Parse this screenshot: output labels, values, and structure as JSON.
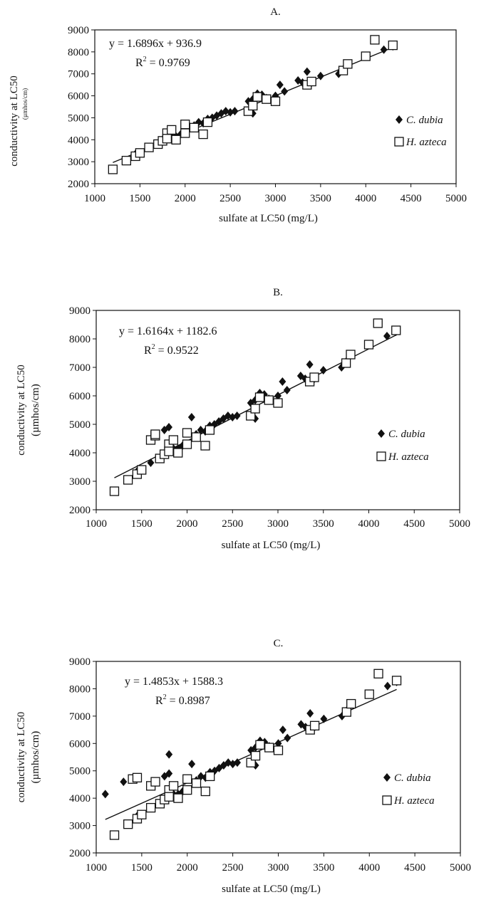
{
  "chart_data": [
    {
      "type": "scatter",
      "title": "A.",
      "xlabel": "sulfate at LC50 (mg/L)",
      "ylabel": "conductivity at LC50",
      "ylabel_unit": "(µmhos/cm)",
      "xlim": [
        1000,
        5000
      ],
      "ylim": [
        2000,
        9000
      ],
      "x_ticks": [
        1000,
        1500,
        2000,
        2500,
        3000,
        3500,
        4000,
        4500,
        5000
      ],
      "y_ticks": [
        2000,
        3000,
        4000,
        5000,
        6000,
        7000,
        8000,
        9000
      ],
      "equation": "y = 1.6896x + 936.9",
      "r2_label": "R",
      "r2_exp": "2",
      "r2_value": " = 0.9769",
      "trendline": {
        "slope": 1.6896,
        "intercept": 936.9,
        "x_range": [
          1200,
          4300
        ]
      },
      "legend_position": "right",
      "series": [
        {
          "name": "C. dubia",
          "marker": "diamond",
          "points": [
            [
              1450,
              3350
            ],
            [
              1500,
              3400
            ],
            [
              1600,
              3650
            ],
            [
              1750,
              3950
            ],
            [
              1800,
              4100
            ],
            [
              1850,
              4150
            ],
            [
              1900,
              4150
            ],
            [
              1950,
              4250
            ],
            [
              2000,
              4400
            ],
            [
              2050,
              4600
            ],
            [
              2100,
              4650
            ],
            [
              2150,
              4800
            ],
            [
              2200,
              4750
            ],
            [
              2250,
              4950
            ],
            [
              2300,
              5000
            ],
            [
              2350,
              5100
            ],
            [
              2400,
              5200
            ],
            [
              2450,
              5300
            ],
            [
              2500,
              5250
            ],
            [
              2550,
              5300
            ],
            [
              2700,
              5750
            ],
            [
              2750,
              5850
            ],
            [
              2750,
              5200
            ],
            [
              2800,
              6100
            ],
            [
              2850,
              6050
            ],
            [
              2900,
              5900
            ],
            [
              3000,
              6000
            ],
            [
              3050,
              6500
            ],
            [
              3100,
              6200
            ],
            [
              3250,
              6700
            ],
            [
              3300,
              6600
            ],
            [
              3350,
              7100
            ],
            [
              3400,
              6600
            ],
            [
              3500,
              6900
            ],
            [
              3700,
              7000
            ],
            [
              3750,
              7200
            ],
            [
              4200,
              8100
            ],
            [
              4300,
              8250
            ]
          ]
        },
        {
          "name": "H. azteca",
          "marker": "square",
          "points": [
            [
              1200,
              2650
            ],
            [
              1350,
              3050
            ],
            [
              1450,
              3250
            ],
            [
              1500,
              3400
            ],
            [
              1600,
              3650
            ],
            [
              1700,
              3800
            ],
            [
              1750,
              3950
            ],
            [
              1800,
              4300
            ],
            [
              1800,
              4050
            ],
            [
              1850,
              4450
            ],
            [
              1900,
              4000
            ],
            [
              2000,
              4700
            ],
            [
              2000,
              4300
            ],
            [
              2100,
              4550
            ],
            [
              2200,
              4250
            ],
            [
              2250,
              4800
            ],
            [
              2700,
              5300
            ],
            [
              2750,
              5550
            ],
            [
              2800,
              5950
            ],
            [
              2900,
              5850
            ],
            [
              3000,
              5750
            ],
            [
              3350,
              6500
            ],
            [
              3400,
              6650
            ],
            [
              3750,
              7150
            ],
            [
              3800,
              7450
            ],
            [
              4000,
              7800
            ],
            [
              4100,
              8550
            ],
            [
              4300,
              8300
            ]
          ]
        }
      ]
    },
    {
      "type": "scatter",
      "title": "B.",
      "xlabel": "sulfate at LC50 (mg/L)",
      "ylabel": "conductivity at LC50",
      "ylabel_unit": "(µmhos/cm)",
      "xlim": [
        1000,
        5000
      ],
      "ylim": [
        2000,
        9000
      ],
      "x_ticks": [
        1000,
        1500,
        2000,
        2500,
        3000,
        3500,
        4000,
        4500,
        5000
      ],
      "y_ticks": [
        2000,
        3000,
        4000,
        5000,
        6000,
        7000,
        8000,
        9000
      ],
      "equation": "y = 1.6164x + 1182.6",
      "r2_label": "R",
      "r2_exp": "2",
      "r2_value": " = 0.9522",
      "trendline": {
        "slope": 1.6164,
        "intercept": 1182.6,
        "x_range": [
          1200,
          4300
        ]
      },
      "legend_position": "right",
      "series": [
        {
          "name": "C. dubia",
          "marker": "diamond",
          "points": [
            [
              1450,
              3350
            ],
            [
              1500,
              3400
            ],
            [
              1600,
              3650
            ],
            [
              1750,
              3950
            ],
            [
              1750,
              4800
            ],
            [
              1800,
              4900
            ],
            [
              1850,
              4150
            ],
            [
              1900,
              4150
            ],
            [
              1950,
              4250
            ],
            [
              2050,
              5250
            ],
            [
              2100,
              4650
            ],
            [
              2150,
              4800
            ],
            [
              2200,
              4750
            ],
            [
              2250,
              4950
            ],
            [
              2300,
              5000
            ],
            [
              2350,
              5100
            ],
            [
              2400,
              5200
            ],
            [
              2450,
              5300
            ],
            [
              2500,
              5250
            ],
            [
              2550,
              5300
            ],
            [
              2700,
              5750
            ],
            [
              2750,
              5850
            ],
            [
              2750,
              5200
            ],
            [
              2800,
              6100
            ],
            [
              2850,
              6050
            ],
            [
              2900,
              5900
            ],
            [
              3000,
              6000
            ],
            [
              3050,
              6500
            ],
            [
              3100,
              6200
            ],
            [
              3250,
              6700
            ],
            [
              3300,
              6600
            ],
            [
              3350,
              7100
            ],
            [
              3400,
              6600
            ],
            [
              3500,
              6900
            ],
            [
              3700,
              7000
            ],
            [
              3750,
              7200
            ],
            [
              4200,
              8100
            ],
            [
              4300,
              8250
            ]
          ]
        },
        {
          "name": "H. azteca",
          "marker": "square",
          "points": [
            [
              1200,
              2650
            ],
            [
              1350,
              3050
            ],
            [
              1450,
              3250
            ],
            [
              1500,
              3400
            ],
            [
              1600,
              4450
            ],
            [
              1650,
              4600
            ],
            [
              1650,
              4650
            ],
            [
              1700,
              3800
            ],
            [
              1750,
              3950
            ],
            [
              1800,
              4300
            ],
            [
              1800,
              4050
            ],
            [
              1850,
              4450
            ],
            [
              1900,
              4000
            ],
            [
              2000,
              4700
            ],
            [
              2000,
              4300
            ],
            [
              2100,
              4550
            ],
            [
              2200,
              4250
            ],
            [
              2250,
              4800
            ],
            [
              2700,
              5300
            ],
            [
              2750,
              5550
            ],
            [
              2800,
              5950
            ],
            [
              2900,
              5850
            ],
            [
              3000,
              5750
            ],
            [
              3350,
              6500
            ],
            [
              3400,
              6650
            ],
            [
              3750,
              7150
            ],
            [
              3800,
              7450
            ],
            [
              4000,
              7800
            ],
            [
              4100,
              8550
            ],
            [
              4300,
              8300
            ]
          ]
        }
      ]
    },
    {
      "type": "scatter",
      "title": "C.",
      "xlabel": "sulfate at LC50 (mg/L)",
      "ylabel": "conductivity at LC50",
      "ylabel_unit": "(µmhos/cm)",
      "xlim": [
        1000,
        5000
      ],
      "ylim": [
        2000,
        9000
      ],
      "x_ticks": [
        1000,
        1500,
        2000,
        2500,
        3000,
        3500,
        4000,
        4500,
        5000
      ],
      "y_ticks": [
        2000,
        3000,
        4000,
        5000,
        6000,
        7000,
        8000,
        9000
      ],
      "equation": "y = 1.4853x + 1588.3",
      "r2_label": "R",
      "r2_exp": "2",
      "r2_value": " = 0.8987",
      "trendline": {
        "slope": 1.4853,
        "intercept": 1588.3,
        "x_range": [
          1100,
          4300
        ]
      },
      "legend_position": "right",
      "series": [
        {
          "name": "C. dubia",
          "marker": "diamond",
          "points": [
            [
              1100,
              4150
            ],
            [
              1300,
              4600
            ],
            [
              1450,
              3350
            ],
            [
              1500,
              3400
            ],
            [
              1600,
              3650
            ],
            [
              1750,
              3950
            ],
            [
              1750,
              4800
            ],
            [
              1800,
              4900
            ],
            [
              1800,
              5600
            ],
            [
              1850,
              4150
            ],
            [
              1900,
              4150
            ],
            [
              1950,
              4250
            ],
            [
              2050,
              5250
            ],
            [
              2100,
              4650
            ],
            [
              2150,
              4800
            ],
            [
              2200,
              4750
            ],
            [
              2250,
              4950
            ],
            [
              2300,
              5000
            ],
            [
              2350,
              5100
            ],
            [
              2400,
              5200
            ],
            [
              2450,
              5300
            ],
            [
              2500,
              5250
            ],
            [
              2550,
              5300
            ],
            [
              2700,
              5750
            ],
            [
              2750,
              5850
            ],
            [
              2750,
              5200
            ],
            [
              2800,
              6100
            ],
            [
              2850,
              6050
            ],
            [
              2900,
              5900
            ],
            [
              3000,
              6000
            ],
            [
              3050,
              6500
            ],
            [
              3100,
              6200
            ],
            [
              3250,
              6700
            ],
            [
              3300,
              6600
            ],
            [
              3350,
              7100
            ],
            [
              3400,
              6600
            ],
            [
              3500,
              6900
            ],
            [
              3700,
              7000
            ],
            [
              3750,
              7200
            ],
            [
              4200,
              8100
            ],
            [
              4300,
              8250
            ]
          ]
        },
        {
          "name": "H. azteca",
          "marker": "square",
          "points": [
            [
              1200,
              2650
            ],
            [
              1350,
              3050
            ],
            [
              1400,
              4700
            ],
            [
              1450,
              3250
            ],
            [
              1450,
              4750
            ],
            [
              1500,
              3400
            ],
            [
              1600,
              3650
            ],
            [
              1600,
              4450
            ],
            [
              1650,
              4600
            ],
            [
              1700,
              3800
            ],
            [
              1750,
              3950
            ],
            [
              1800,
              4300
            ],
            [
              1800,
              4050
            ],
            [
              1850,
              4450
            ],
            [
              1900,
              4000
            ],
            [
              2000,
              4700
            ],
            [
              2000,
              4300
            ],
            [
              2100,
              4550
            ],
            [
              2200,
              4250
            ],
            [
              2250,
              4800
            ],
            [
              2700,
              5300
            ],
            [
              2750,
              5550
            ],
            [
              2800,
              5950
            ],
            [
              2900,
              5850
            ],
            [
              3000,
              5750
            ],
            [
              3350,
              6500
            ],
            [
              3400,
              6650
            ],
            [
              3750,
              7150
            ],
            [
              3800,
              7450
            ],
            [
              4000,
              7800
            ],
            [
              4100,
              8550
            ],
            [
              4300,
              8300
            ]
          ]
        }
      ]
    }
  ]
}
